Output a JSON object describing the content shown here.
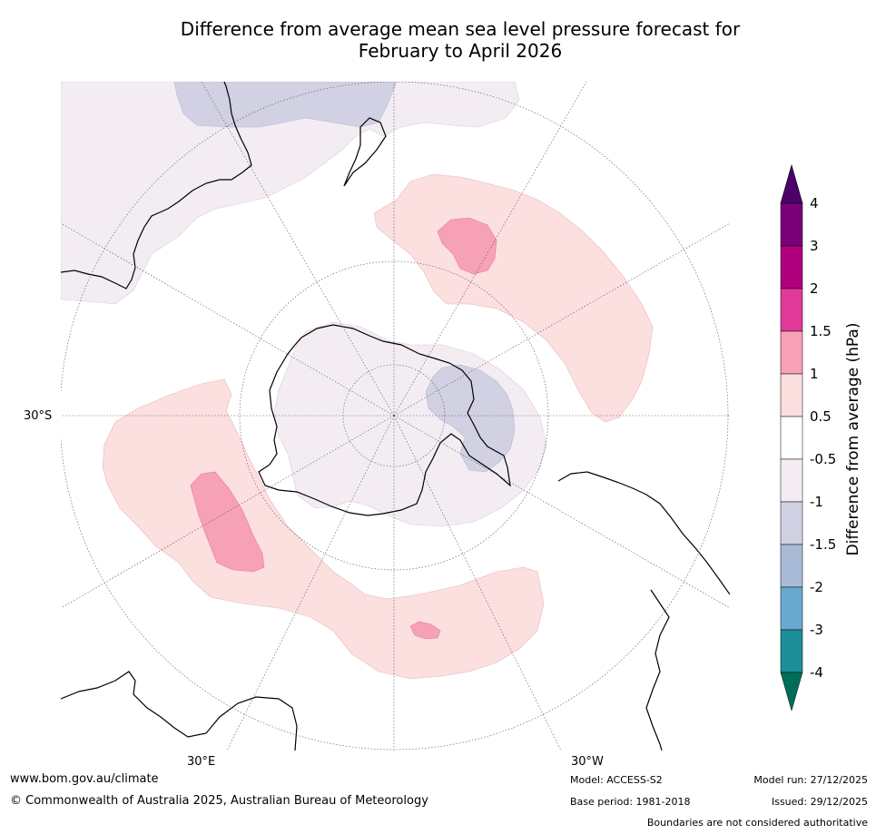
{
  "title": {
    "line1": "Difference from average mean sea level pressure forecast for",
    "line2": "February to April 2026"
  },
  "map": {
    "projection": "south-polar-stereographic",
    "lat_label": "30°S",
    "lon_labels": [
      "30°E",
      "30°W"
    ],
    "anomaly_regions": [
      {
        "name": "south-pacific-positive",
        "category": "0.5-1"
      },
      {
        "name": "south-pacific-core",
        "category": "1-1.5"
      },
      {
        "name": "indian-ocean-positive",
        "category": "0.5-1"
      },
      {
        "name": "indian-ocean-core",
        "category": "1-1.5"
      },
      {
        "name": "south-atlantic-core",
        "category": "1-1.5"
      },
      {
        "name": "antarctica-negative",
        "category": "-1--0.5"
      },
      {
        "name": "weddell-sea-negative",
        "category": "-1.5--1"
      },
      {
        "name": "australia-negative",
        "category": "-1--0.5"
      },
      {
        "name": "tasman-negative",
        "category": "-1.5--1"
      }
    ]
  },
  "colorbar": {
    "title": "Difference from average (hPa)",
    "labels": [
      "4",
      "3",
      "2",
      "1.5",
      "1",
      "0.5",
      "-0.5",
      "-1",
      "-1.5",
      "-2",
      "-3",
      "-4"
    ],
    "colors": [
      "#7a007a",
      "#b0007e",
      "#e0399a",
      "#f7a1b6",
      "#fbdfdf",
      "#ffffff",
      "#f3edf3",
      "#d1d1e3",
      "#a9bbd6",
      "#68a9d0",
      "#1d8f98"
    ],
    "over_color": "#4d006b",
    "under_color": "#006d5b"
  },
  "footer": {
    "website": "www.bom.gov.au/climate",
    "copyright": "© Commonwealth of Australia 2025, Australian Bureau of Meteorology",
    "model": "Model: ACCESS-S2",
    "base_period": "Base period: 1981-2018",
    "model_run": "Model run: 27/12/2025",
    "issued": "Issued: 29/12/2025",
    "disclaimer": "Boundaries are not considered authoritative"
  }
}
